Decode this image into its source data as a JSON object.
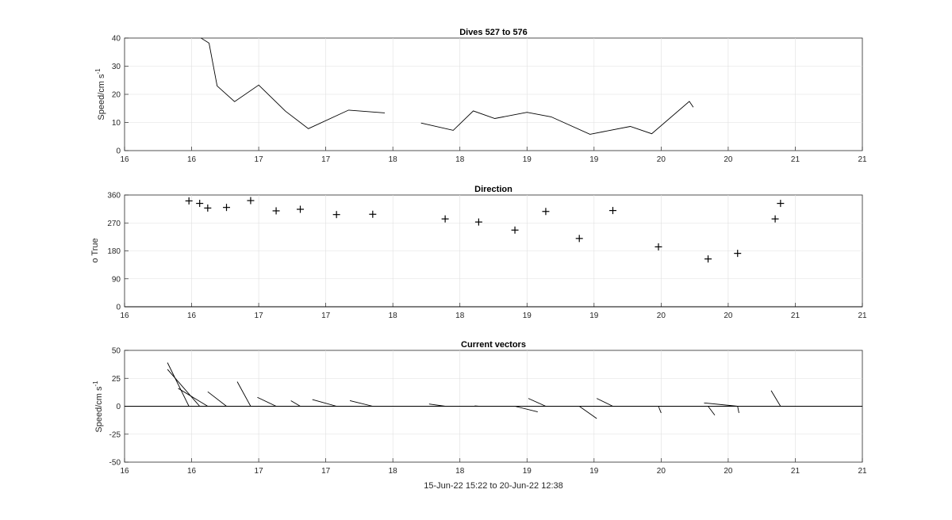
{
  "colors": {
    "line": "#000000",
    "axis": "#262626",
    "grid": "#dfdfdf",
    "background": "#ffffff"
  },
  "chart_data": [
    {
      "type": "line",
      "title": "Dives 527 to 576",
      "ylabel": "Speed/cm s",
      "ylabel_sup": "-1",
      "xlabel": "",
      "xlim": [
        15.5,
        21
      ],
      "ylim": [
        0,
        40
      ],
      "xticks": [
        {
          "v": 15.5,
          "label": "16"
        },
        {
          "v": 16,
          "label": "16"
        },
        {
          "v": 16.5,
          "label": "17"
        },
        {
          "v": 17,
          "label": "17"
        },
        {
          "v": 17.5,
          "label": "18"
        },
        {
          "v": 18,
          "label": "18"
        },
        {
          "v": 18.5,
          "label": "19"
        },
        {
          "v": 19,
          "label": "19"
        },
        {
          "v": 19.5,
          "label": "20"
        },
        {
          "v": 20,
          "label": "20"
        },
        {
          "v": 20.5,
          "label": "21"
        },
        {
          "v": 21,
          "label": "21"
        }
      ],
      "yticks": [
        {
          "v": 0,
          "label": "0"
        },
        {
          "v": 10,
          "label": "10"
        },
        {
          "v": 20,
          "label": "20"
        },
        {
          "v": 30,
          "label": "30"
        },
        {
          "v": 40,
          "label": "40"
        }
      ],
      "grid": true,
      "segments": [
        {
          "x": [
            16.07,
            16.13,
            16.19,
            16.32,
            16.5,
            16.7,
            16.87,
            17.17,
            17.44
          ],
          "y": [
            40,
            38.2,
            23,
            17.4,
            23.3,
            14,
            7.8,
            14.4,
            13.4
          ]
        },
        {
          "x": [
            17.71,
            17.95,
            18.1,
            18.26,
            18.5,
            18.68,
            18.97,
            19.27,
            19.43,
            19.71,
            19.74
          ],
          "y": [
            9.8,
            7.2,
            14.1,
            11.4,
            13.6,
            12.0,
            5.8,
            8.6,
            6.0,
            17.5,
            15.4
          ]
        }
      ]
    },
    {
      "type": "scatter",
      "title": "Direction",
      "ylabel": "o True",
      "xlabel": "",
      "xlim": [
        15.5,
        21
      ],
      "ylim": [
        0,
        360
      ],
      "xticks": [
        {
          "v": 15.5,
          "label": "16"
        },
        {
          "v": 16,
          "label": "16"
        },
        {
          "v": 16.5,
          "label": "17"
        },
        {
          "v": 17,
          "label": "17"
        },
        {
          "v": 17.5,
          "label": "18"
        },
        {
          "v": 18,
          "label": "18"
        },
        {
          "v": 18.5,
          "label": "19"
        },
        {
          "v": 19,
          "label": "19"
        },
        {
          "v": 19.5,
          "label": "20"
        },
        {
          "v": 20,
          "label": "20"
        },
        {
          "v": 20.5,
          "label": "21"
        },
        {
          "v": 21,
          "label": "21"
        }
      ],
      "yticks": [
        {
          "v": 0,
          "label": "0"
        },
        {
          "v": 90,
          "label": "90"
        },
        {
          "v": 180,
          "label": "180"
        },
        {
          "v": 270,
          "label": "270"
        },
        {
          "v": 360,
          "label": "360"
        }
      ],
      "grid": true,
      "points": {
        "x": [
          15.98,
          16.06,
          16.12,
          16.26,
          16.44,
          16.63,
          16.81,
          17.08,
          17.35,
          17.89,
          18.14,
          18.41,
          18.64,
          18.89,
          19.14,
          19.48,
          19.85,
          20.07,
          20.35,
          20.39
        ],
        "y": [
          341,
          333,
          318,
          320,
          342,
          309,
          314,
          297,
          298,
          283,
          273,
          247,
          307,
          220,
          310,
          193,
          154,
          172,
          283,
          333
        ]
      }
    },
    {
      "type": "vector",
      "title": "Current vectors",
      "ylabel": "Speed/cm s",
      "ylabel_sup": "-1",
      "xlabel": "15-Jun-22 15:22 to 20-Jun-22 12:38",
      "xlim": [
        15.5,
        21
      ],
      "ylim": [
        -50,
        50
      ],
      "xticks": [
        {
          "v": 15.5,
          "label": "16"
        },
        {
          "v": 16,
          "label": "16"
        },
        {
          "v": 16.5,
          "label": "17"
        },
        {
          "v": 17,
          "label": "17"
        },
        {
          "v": 17.5,
          "label": "18"
        },
        {
          "v": 18,
          "label": "18"
        },
        {
          "v": 18.5,
          "label": "19"
        },
        {
          "v": 19,
          "label": "19"
        },
        {
          "v": 19.5,
          "label": "20"
        },
        {
          "v": 20,
          "label": "20"
        },
        {
          "v": 20.5,
          "label": "21"
        },
        {
          "v": 21,
          "label": "21"
        }
      ],
      "yticks": [
        {
          "v": -50,
          "label": "-50"
        },
        {
          "v": -25,
          "label": "-25"
        },
        {
          "v": 0,
          "label": "0"
        },
        {
          "v": 25,
          "label": "25"
        },
        {
          "v": 50,
          "label": "50"
        }
      ],
      "grid": true,
      "vectors": [
        {
          "x": 15.98,
          "dx": -0.16,
          "dy": 39
        },
        {
          "x": 16.06,
          "dx": -0.24,
          "dy": 33
        },
        {
          "x": 16.12,
          "dx": -0.22,
          "dy": 16
        },
        {
          "x": 16.26,
          "dx": -0.14,
          "dy": 13
        },
        {
          "x": 16.44,
          "dx": -0.1,
          "dy": 22
        },
        {
          "x": 16.63,
          "dx": -0.14,
          "dy": 8
        },
        {
          "x": 16.81,
          "dx": -0.07,
          "dy": 5
        },
        {
          "x": 17.08,
          "dx": -0.18,
          "dy": 6
        },
        {
          "x": 17.35,
          "dx": -0.17,
          "dy": 5
        },
        {
          "x": 17.89,
          "dx": -0.12,
          "dy": 2
        },
        {
          "x": 18.14,
          "dx": -0.03,
          "dy": 0.3
        },
        {
          "x": 18.41,
          "dx": 0.17,
          "dy": -5
        },
        {
          "x": 18.64,
          "dx": -0.13,
          "dy": 7
        },
        {
          "x": 18.89,
          "dx": 0.13,
          "dy": -11
        },
        {
          "x": 19.14,
          "dx": -0.12,
          "dy": 7
        },
        {
          "x": 19.48,
          "dx": 0.02,
          "dy": -6
        },
        {
          "x": 19.85,
          "dx": 0.05,
          "dy": -8
        },
        {
          "x": 20.07,
          "dx": 0.01,
          "dy": -6
        },
        {
          "x": 20.07,
          "dx": -0.25,
          "dy": 3
        },
        {
          "x": 20.39,
          "dx": -0.07,
          "dy": 14
        }
      ]
    }
  ]
}
